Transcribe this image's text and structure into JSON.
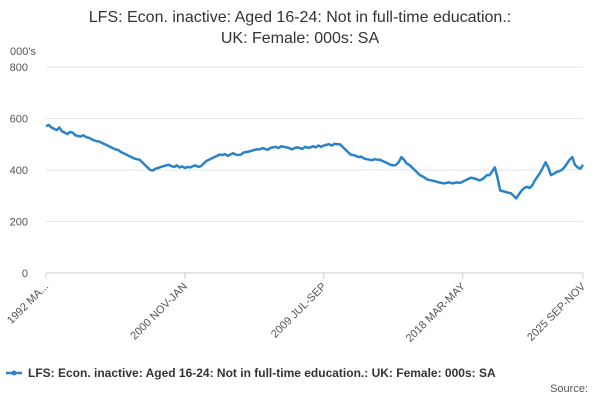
{
  "chart_data": {
    "type": "line",
    "title": "LFS: Econ. inactive: Aged 16-24: Not in full-time education.: UK: Female: 000s: SA",
    "y_label": "000's",
    "source": "Source:",
    "categories": [
      "1992 MA...",
      null,
      null,
      null,
      null,
      null,
      null,
      null,
      null,
      null,
      null,
      null,
      null,
      null,
      null,
      null,
      null,
      null,
      null,
      null,
      null,
      null,
      null,
      null,
      null,
      null,
      null,
      null,
      null,
      null,
      null,
      null,
      null,
      null,
      null,
      null,
      null,
      null,
      null,
      null,
      null,
      null,
      null,
      null,
      null,
      null,
      null,
      null,
      null,
      null,
      null,
      null,
      "2000 NOV-JAN",
      null,
      null,
      null,
      null,
      null,
      null,
      null,
      null,
      null,
      null,
      null,
      null,
      null,
      null,
      null,
      null,
      null,
      null,
      null,
      null,
      null,
      null,
      null,
      null,
      null,
      null,
      null,
      null,
      null,
      null,
      null,
      null,
      null,
      null,
      null,
      null,
      null,
      null,
      null,
      null,
      null,
      null,
      null,
      null,
      null,
      null,
      null,
      null,
      null,
      null,
      null,
      "2009 JUL-SEP",
      null,
      null,
      null,
      null,
      null,
      null,
      null,
      null,
      null,
      null,
      null,
      null,
      null,
      null,
      null,
      null,
      null,
      null,
      null,
      null,
      null,
      null,
      null,
      null,
      null,
      null,
      null,
      null,
      null,
      null,
      null,
      null,
      null,
      null,
      null,
      null,
      null,
      null,
      null,
      null,
      null,
      null,
      null,
      null,
      null,
      null,
      null,
      null,
      null,
      null,
      null,
      "2018 MAR-MAY",
      null,
      null,
      null,
      null,
      null,
      null,
      null,
      null,
      null,
      null,
      null,
      null,
      null,
      null,
      null,
      null,
      null,
      null,
      null,
      null,
      null,
      null,
      null,
      null,
      null,
      null,
      null,
      null,
      null,
      null,
      null,
      null,
      null,
      null,
      null,
      null,
      null,
      null,
      null,
      null,
      null,
      null,
      null,
      null,
      "2025 SEP-NOV"
    ],
    "series": [
      {
        "name": "LFS: Econ. inactive: Aged 16-24: Not in full-time education.: UK: Female: 000s: SA",
        "color": "#2a83c6",
        "values": [
          570,
          575,
          565,
          560,
          555,
          565,
          550,
          545,
          540,
          548,
          545,
          535,
          532,
          530,
          535,
          528,
          525,
          520,
          515,
          512,
          510,
          505,
          500,
          495,
          490,
          485,
          480,
          478,
          470,
          465,
          460,
          455,
          450,
          445,
          442,
          440,
          430,
          420,
          410,
          400,
          398,
          405,
          408,
          412,
          415,
          418,
          420,
          415,
          412,
          418,
          410,
          414,
          408,
          412,
          410,
          415,
          418,
          412,
          415,
          425,
          435,
          440,
          445,
          450,
          455,
          460,
          458,
          462,
          455,
          460,
          465,
          460,
          458,
          460,
          468,
          470,
          472,
          475,
          478,
          480,
          480,
          485,
          482,
          478,
          486,
          488,
          490,
          485,
          492,
          490,
          488,
          485,
          480,
          485,
          488,
          485,
          482,
          490,
          486,
          488,
          492,
          488,
          495,
          490,
          495,
          498,
          500,
          495,
          502,
          500,
          500,
          490,
          480,
          470,
          460,
          458,
          455,
          450,
          452,
          445,
          442,
          440,
          438,
          442,
          440,
          440,
          435,
          430,
          425,
          420,
          418,
          420,
          430,
          450,
          440,
          425,
          420,
          410,
          400,
          390,
          380,
          375,
          368,
          362,
          360,
          358,
          355,
          352,
          350,
          348,
          350,
          352,
          348,
          350,
          352,
          350,
          355,
          360,
          365,
          370,
          368,
          365,
          360,
          362,
          370,
          380,
          380,
          395,
          410,
          370,
          320,
          318,
          315,
          312,
          310,
          300,
          290,
          305,
          320,
          330,
          335,
          330,
          340,
          360,
          375,
          390,
          410,
          430,
          410,
          380,
          385,
          392,
          395,
          400,
          410,
          425,
          440,
          450,
          420,
          410,
          405,
          420
        ]
      }
    ],
    "ylim": [
      0,
      800
    ],
    "yticks": [
      0,
      200,
      400,
      600,
      800
    ],
    "grid": true
  }
}
